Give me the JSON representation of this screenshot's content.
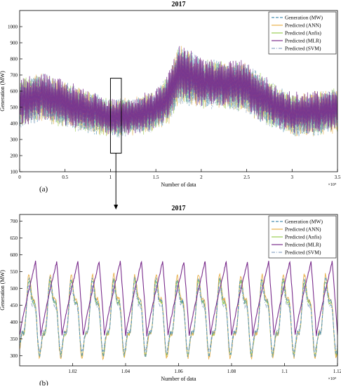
{
  "colors": {
    "generation": "#4a8fb0",
    "ann": "#e8b04a",
    "anfis": "#9acd52",
    "mlr": "#7a2d8c",
    "svm": "#8fa8c8",
    "axis": "#000000"
  },
  "chart_data": [
    {
      "type": "line",
      "title": "2017",
      "xlabel": "Number of data",
      "ylabel": "Generation (MW)",
      "panel_label": "(a)",
      "x_exponent": "×10⁴",
      "xlim": [
        0,
        3.5
      ],
      "ylim": [
        100,
        1100
      ],
      "xticks": [
        0,
        0.5,
        1,
        1.5,
        2,
        2.5,
        3,
        3.5
      ],
      "xtick_labels": [
        "0",
        "0.5",
        "1",
        "1.5",
        "2",
        "2.5",
        "3",
        "3.5"
      ],
      "yticks": [
        100,
        200,
        300,
        400,
        500,
        600,
        700,
        800,
        900,
        1000
      ],
      "legend_position": "top-right",
      "series": [
        {
          "name": "Generation (MW)",
          "style": "dashed"
        },
        {
          "name": "Predicted (ANN)",
          "style": "solid"
        },
        {
          "name": "Predicted (Anfis)",
          "style": "solid"
        },
        {
          "name": "Predicted (MLR)",
          "style": "solid"
        },
        {
          "name": "Predicted (SVM)",
          "style": "dash-dot"
        }
      ],
      "envelope": {
        "x": [
          0,
          0.25,
          0.5,
          0.75,
          1.0,
          1.25,
          1.5,
          1.65,
          1.75,
          1.85,
          2.0,
          2.25,
          2.5,
          2.75,
          3.0,
          3.25,
          3.5
        ],
        "mid": [
          520,
          560,
          510,
          470,
          430,
          440,
          480,
          560,
          700,
          690,
          650,
          640,
          620,
          520,
          450,
          460,
          480
        ],
        "amp": [
          150,
          140,
          140,
          120,
          110,
          110,
          120,
          150,
          180,
          170,
          150,
          140,
          150,
          140,
          120,
          130,
          130
        ]
      }
    },
    {
      "type": "line",
      "title": "2017",
      "xlabel": "Number of data",
      "ylabel": "Generation (MW)",
      "panel_label": "(b)",
      "x_exponent": "×10⁴",
      "xlim": [
        1.0,
        1.12
      ],
      "ylim": [
        270,
        720
      ],
      "xticks": [
        1.02,
        1.04,
        1.06,
        1.08,
        1.1,
        1.12
      ],
      "xtick_labels": [
        "1.02",
        "1.04",
        "1.06",
        "1.08",
        "1.1",
        "1.12"
      ],
      "yticks": [
        300,
        350,
        400,
        450,
        500,
        550,
        600,
        650,
        700
      ],
      "legend_position": "top-right",
      "cycles": 15,
      "series": [
        {
          "name": "Generation (MW)",
          "style": "dashed",
          "low": 320,
          "high": 510
        },
        {
          "name": "Predicted (ANN)",
          "style": "solid",
          "low": 315,
          "high": 520
        },
        {
          "name": "Predicted (Anfis)",
          "style": "solid",
          "low": 320,
          "high": 505
        },
        {
          "name": "Predicted (MLR)",
          "style": "solid",
          "low": 360,
          "high": 580
        },
        {
          "name": "Predicted (SVM)",
          "style": "dash-dot",
          "low": 330,
          "high": 490
        }
      ]
    }
  ]
}
